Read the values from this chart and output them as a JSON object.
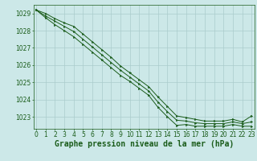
{
  "title": "Graphe pression niveau de la mer (hPa)",
  "bg_color": "#cce8e8",
  "grid_color": "#aacccc",
  "line_color": "#1a5c1a",
  "x_ticks": [
    0,
    1,
    2,
    3,
    4,
    5,
    6,
    7,
    8,
    9,
    10,
    11,
    12,
    13,
    14,
    15,
    16,
    17,
    18,
    19,
    20,
    21,
    22,
    23
  ],
  "y_ticks": [
    1023,
    1024,
    1025,
    1026,
    1027,
    1028,
    1029
  ],
  "ylim": [
    1022.3,
    1029.5
  ],
  "xlim": [
    -0.3,
    23.3
  ],
  "line_max": [
    1029.2,
    1029.0,
    1028.7,
    1028.45,
    1028.25,
    1027.8,
    1027.35,
    1026.9,
    1026.45,
    1025.95,
    1025.55,
    1025.15,
    1024.75,
    1024.15,
    1023.6,
    1023.05,
    1022.95,
    1022.85,
    1022.75,
    1022.75,
    1022.75,
    1022.85,
    1022.7,
    1023.05
  ],
  "line_avg": [
    1029.2,
    1028.85,
    1028.55,
    1028.25,
    1027.95,
    1027.5,
    1027.05,
    1026.6,
    1026.15,
    1025.7,
    1025.3,
    1024.9,
    1024.5,
    1023.85,
    1023.3,
    1022.8,
    1022.75,
    1022.65,
    1022.6,
    1022.6,
    1022.6,
    1022.7,
    1022.6,
    1022.7
  ],
  "line_min": [
    1029.2,
    1028.75,
    1028.35,
    1028.0,
    1027.65,
    1027.2,
    1026.75,
    1026.3,
    1025.85,
    1025.4,
    1025.05,
    1024.65,
    1024.25,
    1023.55,
    1023.0,
    1022.5,
    1022.55,
    1022.45,
    1022.45,
    1022.45,
    1022.45,
    1022.55,
    1022.45,
    1022.45
  ],
  "title_fontsize": 7,
  "tick_fontsize": 5.5,
  "lw": 0.7,
  "ms": 1.8
}
